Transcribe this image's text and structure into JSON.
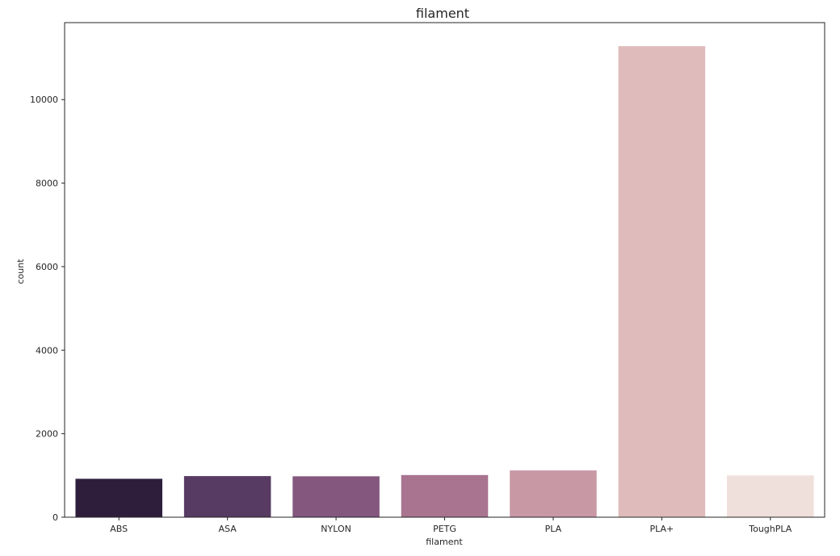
{
  "chart_data": {
    "type": "bar",
    "title": "filament",
    "xlabel": "filament",
    "ylabel": "count",
    "categories": [
      "ABS",
      "ASA",
      "NYLON",
      "PETG",
      "PLA",
      "PLA+",
      "ToughPLA"
    ],
    "values": [
      920,
      985,
      980,
      1010,
      1120,
      11280,
      1000
    ],
    "colors": [
      "#2e1e3b",
      "#573b62",
      "#83577e",
      "#a87490",
      "#c898a5",
      "#dfbcbb",
      "#efe0dc"
    ],
    "ylim": [
      0,
      11843
    ],
    "yticks": [
      0,
      2000,
      4000,
      6000,
      8000,
      10000
    ],
    "grid": false,
    "legend": "none"
  }
}
